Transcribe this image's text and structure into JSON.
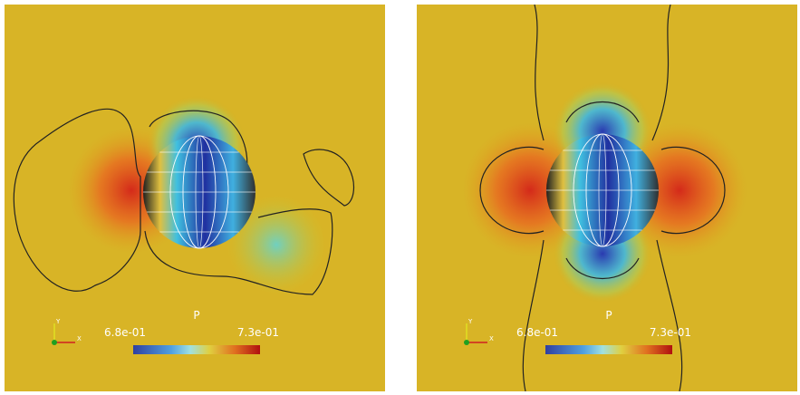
{
  "panels": [
    {
      "colorbar": {
        "title": "P",
        "min_label": "6.8e-01",
        "max_label": "7.3e-01"
      },
      "axes": {
        "x": "X",
        "y": "Y"
      }
    },
    {
      "colorbar": {
        "title": "P",
        "min_label": "6.8e-01",
        "max_label": "7.3e-01"
      },
      "axes": {
        "x": "X",
        "y": "Y"
      }
    }
  ]
}
